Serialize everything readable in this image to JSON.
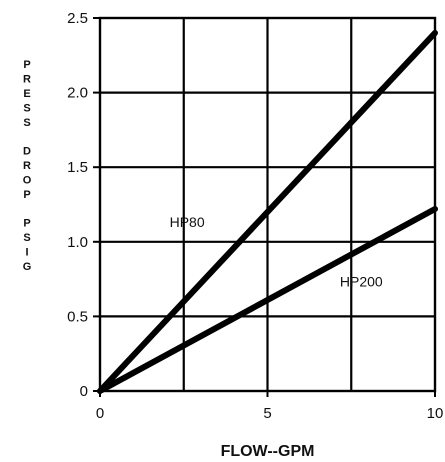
{
  "chart_data": {
    "type": "line",
    "title": "",
    "xlabel": "FLOW--GPM",
    "ylabel": "PRESS DROP PSIG",
    "xlim": [
      0,
      10
    ],
    "ylim": [
      0,
      2.5
    ],
    "x_ticks": [
      0,
      5,
      10
    ],
    "x_tick_labels": [
      "0",
      "5",
      "10"
    ],
    "y_ticks": [
      0,
      0.5,
      1.0,
      1.5,
      2.0,
      2.5
    ],
    "y_tick_labels": [
      "0",
      "0.5",
      "1.0",
      "1.5",
      "2.0",
      "2.5"
    ],
    "grid": true,
    "legend": "none",
    "series": [
      {
        "name": "HP80",
        "color": "#000000",
        "x": [
          0,
          10
        ],
        "y": [
          0,
          2.4
        ],
        "label_at": {
          "x": 2.6,
          "y": 1.1
        }
      },
      {
        "name": "HP200",
        "color": "#000000",
        "x": [
          0,
          10
        ],
        "y": [
          0,
          1.22
        ],
        "label_at": {
          "x": 7.8,
          "y": 0.7
        }
      }
    ]
  }
}
